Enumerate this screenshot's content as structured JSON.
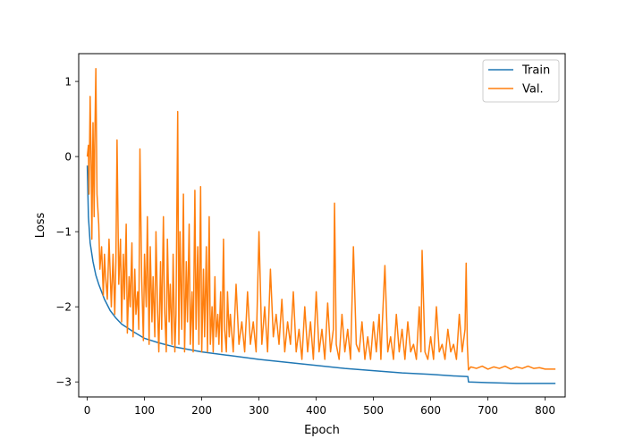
{
  "chart_data": {
    "type": "line",
    "title": "",
    "xlabel": "Epoch",
    "ylabel": "Loss",
    "xlim": [
      -15,
      835
    ],
    "ylim": [
      -3.2,
      1.37
    ],
    "xticks": [
      0,
      100,
      200,
      300,
      400,
      500,
      600,
      700,
      800
    ],
    "yticks": [
      -3,
      -2,
      -1,
      0,
      1
    ],
    "grid": false,
    "legend_position": "top-right",
    "series": [
      {
        "name": "Train",
        "color": "#1f77b4",
        "x": [
          0,
          2,
          5,
          10,
          15,
          20,
          30,
          40,
          50,
          60,
          80,
          100,
          125,
          150,
          200,
          250,
          300,
          350,
          400,
          450,
          500,
          550,
          600,
          640,
          665,
          666,
          700,
          750,
          800,
          818
        ],
        "y": [
          -0.12,
          -0.8,
          -1.15,
          -1.4,
          -1.58,
          -1.7,
          -1.9,
          -2.05,
          -2.15,
          -2.23,
          -2.33,
          -2.42,
          -2.48,
          -2.53,
          -2.6,
          -2.65,
          -2.7,
          -2.74,
          -2.78,
          -2.82,
          -2.85,
          -2.88,
          -2.9,
          -2.92,
          -2.93,
          -3.0,
          -3.01,
          -3.02,
          -3.02,
          -3.02
        ]
      },
      {
        "name": "Val.",
        "color": "#ff7f0e",
        "x": [
          0,
          2,
          3,
          5,
          7,
          8,
          10,
          12,
          13,
          15,
          17,
          20,
          22,
          25,
          28,
          30,
          32,
          35,
          38,
          40,
          42,
          45,
          48,
          50,
          52,
          55,
          58,
          60,
          63,
          65,
          68,
          70,
          73,
          75,
          78,
          80,
          83,
          85,
          88,
          90,
          92,
          95,
          98,
          100,
          103,
          105,
          108,
          110,
          113,
          115,
          118,
          120,
          123,
          125,
          128,
          130,
          133,
          135,
          138,
          140,
          143,
          145,
          148,
          150,
          153,
          155,
          158,
          160,
          162,
          165,
          168,
          170,
          173,
          175,
          178,
          180,
          183,
          185,
          188,
          190,
          193,
          195,
          198,
          200,
          203,
          205,
          208,
          210,
          213,
          215,
          218,
          220,
          223,
          225,
          228,
          230,
          233,
          235,
          238,
          240,
          243,
          245,
          248,
          250,
          255,
          260,
          265,
          270,
          275,
          280,
          285,
          290,
          295,
          300,
          305,
          310,
          315,
          320,
          325,
          330,
          335,
          340,
          345,
          350,
          355,
          360,
          365,
          370,
          375,
          380,
          385,
          390,
          395,
          400,
          405,
          410,
          415,
          420,
          425,
          430,
          432,
          435,
          440,
          445,
          450,
          455,
          460,
          465,
          470,
          475,
          480,
          485,
          490,
          495,
          500,
          505,
          510,
          513,
          515,
          520,
          525,
          530,
          535,
          540,
          545,
          550,
          555,
          560,
          565,
          570,
          575,
          580,
          583,
          585,
          590,
          595,
          600,
          605,
          610,
          615,
          620,
          625,
          630,
          635,
          640,
          645,
          650,
          655,
          660,
          662,
          664,
          666,
          670,
          680,
          690,
          700,
          710,
          720,
          730,
          740,
          750,
          760,
          770,
          780,
          790,
          800,
          810,
          818
        ],
        "y": [
          0.0,
          0.15,
          -0.5,
          0.8,
          -0.2,
          -1.1,
          0.45,
          -0.8,
          0.15,
          1.17,
          -0.5,
          -0.9,
          -1.5,
          -1.2,
          -1.85,
          -1.3,
          -1.6,
          -1.9,
          -1.1,
          -1.55,
          -2.0,
          -1.3,
          -2.1,
          -1.4,
          0.22,
          -1.7,
          -1.1,
          -2.2,
          -1.3,
          -1.9,
          -0.9,
          -2.35,
          -1.6,
          -2.0,
          -1.15,
          -2.4,
          -1.5,
          -2.1,
          -1.8,
          -2.3,
          0.1,
          -1.6,
          -2.45,
          -1.3,
          -2.0,
          -0.8,
          -2.5,
          -1.2,
          -2.2,
          -1.6,
          -2.4,
          -1.0,
          -2.1,
          -2.6,
          -1.4,
          -2.3,
          -0.8,
          -2.0,
          -2.6,
          -1.1,
          -2.2,
          -1.7,
          -2.5,
          -1.3,
          -2.6,
          -2.1,
          0.6,
          -2.5,
          -1.0,
          -2.3,
          -0.5,
          -2.6,
          -1.4,
          -2.2,
          -0.9,
          -2.5,
          -1.8,
          -2.6,
          -0.45,
          -2.3,
          -1.2,
          -2.5,
          -0.4,
          -2.6,
          -1.5,
          -2.4,
          -1.2,
          -2.6,
          -0.8,
          -2.5,
          -2.0,
          -2.6,
          -1.6,
          -2.4,
          -2.1,
          -2.5,
          -1.8,
          -2.6,
          -1.1,
          -2.3,
          -2.6,
          -1.8,
          -2.4,
          -2.1,
          -2.6,
          -1.7,
          -2.5,
          -2.2,
          -2.6,
          -1.8,
          -2.5,
          -2.2,
          -2.6,
          -1.0,
          -2.5,
          -2.0,
          -2.6,
          -1.5,
          -2.4,
          -2.1,
          -2.5,
          -1.9,
          -2.6,
          -2.2,
          -2.5,
          -1.8,
          -2.6,
          -2.3,
          -2.7,
          -2.0,
          -2.6,
          -2.2,
          -2.7,
          -1.8,
          -2.6,
          -2.3,
          -2.7,
          -1.95,
          -2.6,
          -2.3,
          -0.62,
          -2.5,
          -2.7,
          -2.1,
          -2.6,
          -2.3,
          -2.7,
          -1.2,
          -2.5,
          -2.6,
          -2.2,
          -2.7,
          -2.4,
          -2.7,
          -2.2,
          -2.6,
          -2.1,
          -2.7,
          -2.3,
          -1.45,
          -2.6,
          -2.4,
          -2.7,
          -2.1,
          -2.6,
          -2.3,
          -2.7,
          -2.2,
          -2.6,
          -2.5,
          -2.7,
          -2.0,
          -2.6,
          -1.25,
          -2.6,
          -2.7,
          -2.4,
          -2.7,
          -2.0,
          -2.6,
          -2.5,
          -2.7,
          -2.3,
          -2.6,
          -2.5,
          -2.7,
          -2.1,
          -2.6,
          -2.3,
          -1.42,
          -2.5,
          -2.84,
          -2.8,
          -2.82,
          -2.79,
          -2.83,
          -2.8,
          -2.82,
          -2.79,
          -2.83,
          -2.8,
          -2.82,
          -2.79,
          -2.82,
          -2.81,
          -2.83,
          -2.83,
          -2.83
        ]
      }
    ]
  }
}
